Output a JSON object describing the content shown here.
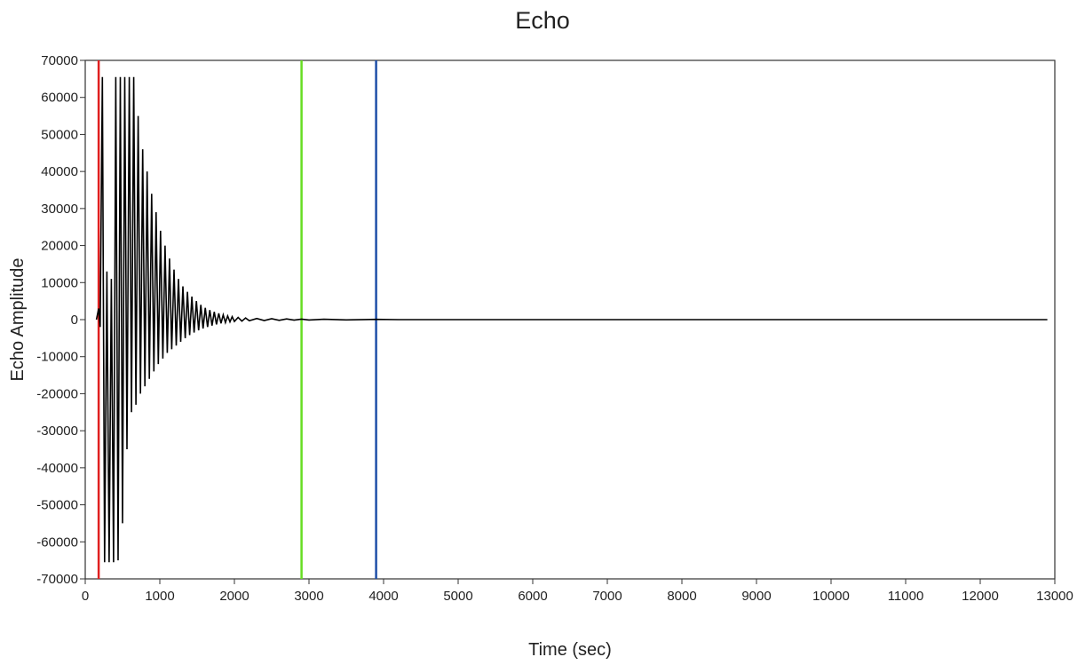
{
  "chart_data": {
    "type": "line",
    "title": "Echo",
    "xlabel": "Time (sec)",
    "ylabel": "Echo Amplitude",
    "xlim": [
      0,
      13000
    ],
    "ylim": [
      -70000,
      70000
    ],
    "x_ticks": [
      0,
      1000,
      2000,
      3000,
      4000,
      5000,
      6000,
      7000,
      8000,
      9000,
      10000,
      11000,
      12000,
      13000
    ],
    "y_ticks": [
      70000,
      60000,
      50000,
      40000,
      30000,
      20000,
      10000,
      0,
      -10000,
      -20000,
      -30000,
      -40000,
      -50000,
      -60000,
      -70000
    ],
    "grid": false,
    "legend": "none",
    "cursors": [
      {
        "x": 180,
        "color": "#e02020"
      },
      {
        "x": 2900,
        "color": "#66dd22"
      },
      {
        "x": 3900,
        "color": "#1f4fa8"
      }
    ],
    "series": [
      {
        "color": "#000000",
        "x": [
          150,
          180,
          200,
          230,
          260,
          290,
          320,
          350,
          380,
          410,
          440,
          470,
          500,
          530,
          560,
          590,
          620,
          650,
          680,
          710,
          740,
          770,
          800,
          830,
          860,
          890,
          920,
          950,
          980,
          1010,
          1040,
          1070,
          1100,
          1130,
          1160,
          1190,
          1220,
          1250,
          1280,
          1310,
          1340,
          1370,
          1400,
          1430,
          1460,
          1490,
          1520,
          1550,
          1580,
          1610,
          1640,
          1670,
          1700,
          1730,
          1760,
          1790,
          1820,
          1850,
          1880,
          1910,
          1940,
          1970,
          2000,
          2050,
          2100,
          2150,
          2200,
          2300,
          2400,
          2500,
          2600,
          2700,
          2800,
          2900,
          3000,
          3200,
          3500,
          3900,
          4200,
          4300,
          4600,
          5000,
          6000,
          7000,
          8000,
          9000,
          10000,
          11000,
          12000,
          12900
        ],
        "values": [
          0,
          3000,
          -2000,
          65500,
          -65500,
          13000,
          -65500,
          11000,
          -65500,
          65500,
          -65000,
          65500,
          -55000,
          65500,
          -35000,
          65500,
          -25000,
          65500,
          -23000,
          55000,
          -20000,
          46000,
          -18000,
          40000,
          -16000,
          34000,
          -14000,
          29000,
          -12000,
          24000,
          -10500,
          20000,
          -9000,
          16500,
          -8000,
          13500,
          -7000,
          11000,
          -6000,
          9000,
          -5000,
          7500,
          -4200,
          6200,
          -3500,
          5000,
          -2900,
          4000,
          -2400,
          3200,
          -2000,
          2600,
          -1600,
          2100,
          -1300,
          1700,
          -1000,
          1300,
          -800,
          1000,
          -600,
          800,
          -500,
          600,
          -400,
          450,
          -300,
          300,
          -250,
          250,
          -200,
          200,
          -150,
          150,
          -100,
          100,
          -80,
          80,
          0,
          0,
          0,
          0,
          0,
          0,
          0,
          0,
          0,
          0,
          0,
          0
        ]
      }
    ]
  }
}
